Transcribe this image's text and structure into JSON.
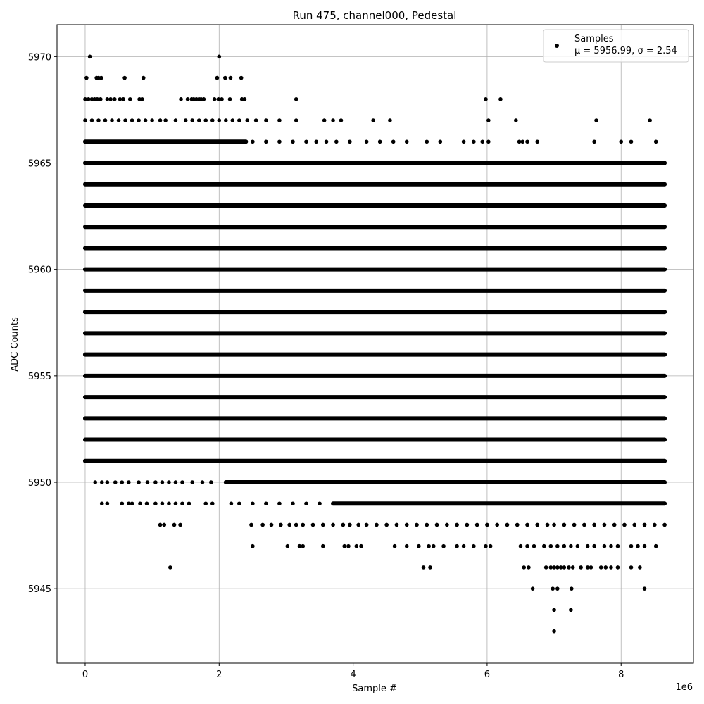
{
  "chart_data": {
    "type": "scatter",
    "title": "Run 475, channel000, Pedestal",
    "xlabel": "Sample #",
    "ylabel": "ADC Counts",
    "x_scale_label": "1e6",
    "xlim": [
      -0.42,
      9.08
    ],
    "ylim": [
      5941.5,
      5971.5
    ],
    "x_ticks": [
      0,
      2,
      4,
      6,
      8
    ],
    "y_ticks": [
      5945,
      5950,
      5955,
      5960,
      5965,
      5970
    ],
    "grid": true,
    "legend": {
      "placement": "top-right",
      "label": "Samples",
      "stats": "μ = 5956.99, σ = 2.54"
    },
    "marker_color": "#000000",
    "series": [
      {
        "name": "Samples",
        "dense_bands": [
          {
            "y": 5951,
            "x_range": [
              0.0,
              8.65
            ]
          },
          {
            "y": 5952,
            "x_range": [
              0.0,
              8.65
            ]
          },
          {
            "y": 5953,
            "x_range": [
              0.0,
              8.65
            ]
          },
          {
            "y": 5954,
            "x_range": [
              0.0,
              8.65
            ]
          },
          {
            "y": 5955,
            "x_range": [
              0.0,
              8.65
            ]
          },
          {
            "y": 5956,
            "x_range": [
              0.0,
              8.65
            ]
          },
          {
            "y": 5957,
            "x_range": [
              0.0,
              8.65
            ]
          },
          {
            "y": 5958,
            "x_range": [
              0.0,
              8.65
            ]
          },
          {
            "y": 5959,
            "x_range": [
              0.0,
              8.65
            ]
          },
          {
            "y": 5960,
            "x_range": [
              0.0,
              8.65
            ]
          },
          {
            "y": 5961,
            "x_range": [
              0.0,
              8.65
            ]
          },
          {
            "y": 5962,
            "x_range": [
              0.0,
              8.65
            ]
          },
          {
            "y": 5963,
            "x_range": [
              0.0,
              8.65
            ]
          },
          {
            "y": 5964,
            "x_range": [
              0.0,
              8.65
            ]
          },
          {
            "y": 5965,
            "x_range": [
              0.0,
              8.65
            ]
          },
          {
            "y": 5950,
            "x_range": [
              2.1,
              8.65
            ]
          },
          {
            "y": 5949,
            "x_range": [
              3.7,
              8.65
            ]
          },
          {
            "y": 5966,
            "x_range": [
              0.0,
              2.4
            ]
          }
        ],
        "points": [
          [
            0.07,
            5970
          ],
          [
            2.0,
            5970
          ],
          [
            0.02,
            5969
          ],
          [
            0.17,
            5969
          ],
          [
            0.2,
            5969
          ],
          [
            0.24,
            5969
          ],
          [
            0.59,
            5969
          ],
          [
            0.87,
            5969
          ],
          [
            1.97,
            5969
          ],
          [
            2.09,
            5969
          ],
          [
            2.17,
            5969
          ],
          [
            2.33,
            5969
          ],
          [
            0.0,
            5968
          ],
          [
            0.05,
            5968
          ],
          [
            0.1,
            5968
          ],
          [
            0.14,
            5968
          ],
          [
            0.18,
            5968
          ],
          [
            0.23,
            5968
          ],
          [
            0.33,
            5968
          ],
          [
            0.38,
            5968
          ],
          [
            0.44,
            5968
          ],
          [
            0.52,
            5968
          ],
          [
            0.57,
            5968
          ],
          [
            0.67,
            5968
          ],
          [
            0.81,
            5968
          ],
          [
            0.85,
            5968
          ],
          [
            1.43,
            5968
          ],
          [
            1.53,
            5968
          ],
          [
            1.59,
            5968
          ],
          [
            1.62,
            5968
          ],
          [
            1.66,
            5968
          ],
          [
            1.7,
            5968
          ],
          [
            1.73,
            5968
          ],
          [
            1.77,
            5968
          ],
          [
            1.93,
            5968
          ],
          [
            1.99,
            5968
          ],
          [
            2.04,
            5968
          ],
          [
            2.16,
            5968
          ],
          [
            2.34,
            5968
          ],
          [
            2.38,
            5968
          ],
          [
            3.15,
            5968
          ],
          [
            5.98,
            5968
          ],
          [
            6.2,
            5968
          ],
          [
            0.0,
            5967
          ],
          [
            0.1,
            5967
          ],
          [
            0.2,
            5967
          ],
          [
            0.3,
            5967
          ],
          [
            0.4,
            5967
          ],
          [
            0.5,
            5967
          ],
          [
            0.6,
            5967
          ],
          [
            0.7,
            5967
          ],
          [
            0.8,
            5967
          ],
          [
            0.9,
            5967
          ],
          [
            1.0,
            5967
          ],
          [
            1.12,
            5967
          ],
          [
            1.2,
            5967
          ],
          [
            1.35,
            5967
          ],
          [
            1.5,
            5967
          ],
          [
            1.6,
            5967
          ],
          [
            1.7,
            5967
          ],
          [
            1.8,
            5967
          ],
          [
            1.9,
            5967
          ],
          [
            2.0,
            5967
          ],
          [
            2.1,
            5967
          ],
          [
            2.2,
            5967
          ],
          [
            2.3,
            5967
          ],
          [
            2.42,
            5967
          ],
          [
            2.55,
            5967
          ],
          [
            2.7,
            5967
          ],
          [
            2.9,
            5967
          ],
          [
            3.15,
            5967
          ],
          [
            3.57,
            5967
          ],
          [
            3.7,
            5967
          ],
          [
            3.82,
            5967
          ],
          [
            4.3,
            5967
          ],
          [
            4.55,
            5967
          ],
          [
            6.02,
            5967
          ],
          [
            6.43,
            5967
          ],
          [
            7.63,
            5967
          ],
          [
            8.43,
            5967
          ],
          [
            2.5,
            5966
          ],
          [
            2.7,
            5966
          ],
          [
            2.9,
            5966
          ],
          [
            3.1,
            5966
          ],
          [
            3.3,
            5966
          ],
          [
            3.45,
            5966
          ],
          [
            3.6,
            5966
          ],
          [
            3.75,
            5966
          ],
          [
            3.95,
            5966
          ],
          [
            4.2,
            5966
          ],
          [
            4.4,
            5966
          ],
          [
            4.6,
            5966
          ],
          [
            4.8,
            5966
          ],
          [
            5.1,
            5966
          ],
          [
            5.3,
            5966
          ],
          [
            5.65,
            5966
          ],
          [
            5.8,
            5966
          ],
          [
            5.93,
            5966
          ],
          [
            6.02,
            5966
          ],
          [
            6.48,
            5966
          ],
          [
            6.53,
            5966
          ],
          [
            6.6,
            5966
          ],
          [
            6.75,
            5966
          ],
          [
            7.6,
            5966
          ],
          [
            8.0,
            5966
          ],
          [
            8.15,
            5966
          ],
          [
            8.52,
            5966
          ],
          [
            0.15,
            5950
          ],
          [
            0.25,
            5950
          ],
          [
            0.33,
            5950
          ],
          [
            0.45,
            5950
          ],
          [
            0.55,
            5950
          ],
          [
            0.65,
            5950
          ],
          [
            0.8,
            5950
          ],
          [
            0.93,
            5950
          ],
          [
            1.05,
            5950
          ],
          [
            1.15,
            5950
          ],
          [
            1.25,
            5950
          ],
          [
            1.35,
            5950
          ],
          [
            1.45,
            5950
          ],
          [
            1.6,
            5950
          ],
          [
            1.75,
            5950
          ],
          [
            1.88,
            5950
          ],
          [
            0.25,
            5949
          ],
          [
            0.33,
            5949
          ],
          [
            0.55,
            5949
          ],
          [
            0.65,
            5949
          ],
          [
            0.7,
            5949
          ],
          [
            0.82,
            5949
          ],
          [
            0.92,
            5949
          ],
          [
            1.05,
            5949
          ],
          [
            1.15,
            5949
          ],
          [
            1.25,
            5949
          ],
          [
            1.35,
            5949
          ],
          [
            1.45,
            5949
          ],
          [
            1.55,
            5949
          ],
          [
            1.8,
            5949
          ],
          [
            1.9,
            5949
          ],
          [
            2.18,
            5949
          ],
          [
            2.3,
            5949
          ],
          [
            2.5,
            5949
          ],
          [
            2.7,
            5949
          ],
          [
            2.9,
            5949
          ],
          [
            3.1,
            5949
          ],
          [
            3.3,
            5949
          ],
          [
            3.5,
            5949
          ],
          [
            1.12,
            5948
          ],
          [
            1.18,
            5948
          ],
          [
            1.33,
            5948
          ],
          [
            1.42,
            5948
          ],
          [
            2.48,
            5948
          ],
          [
            2.65,
            5948
          ],
          [
            2.78,
            5948
          ],
          [
            2.92,
            5948
          ],
          [
            3.05,
            5948
          ],
          [
            3.15,
            5948
          ],
          [
            3.25,
            5948
          ],
          [
            3.4,
            5948
          ],
          [
            3.55,
            5948
          ],
          [
            3.7,
            5948
          ],
          [
            3.85,
            5948
          ],
          [
            3.95,
            5948
          ],
          [
            4.08,
            5948
          ],
          [
            4.2,
            5948
          ],
          [
            4.35,
            5948
          ],
          [
            4.5,
            5948
          ],
          [
            4.65,
            5948
          ],
          [
            4.8,
            5948
          ],
          [
            4.95,
            5948
          ],
          [
            5.1,
            5948
          ],
          [
            5.25,
            5948
          ],
          [
            5.4,
            5948
          ],
          [
            5.55,
            5948
          ],
          [
            5.7,
            5948
          ],
          [
            5.85,
            5948
          ],
          [
            6.0,
            5948
          ],
          [
            6.15,
            5948
          ],
          [
            6.3,
            5948
          ],
          [
            6.45,
            5948
          ],
          [
            6.6,
            5948
          ],
          [
            6.75,
            5948
          ],
          [
            6.9,
            5948
          ],
          [
            7.0,
            5948
          ],
          [
            7.15,
            5948
          ],
          [
            7.3,
            5948
          ],
          [
            7.45,
            5948
          ],
          [
            7.6,
            5948
          ],
          [
            7.75,
            5948
          ],
          [
            7.9,
            5948
          ],
          [
            8.05,
            5948
          ],
          [
            8.2,
            5948
          ],
          [
            8.35,
            5948
          ],
          [
            8.5,
            5948
          ],
          [
            8.65,
            5948
          ],
          [
            2.5,
            5947
          ],
          [
            3.02,
            5947
          ],
          [
            3.2,
            5947
          ],
          [
            3.25,
            5947
          ],
          [
            3.55,
            5947
          ],
          [
            3.87,
            5947
          ],
          [
            3.93,
            5947
          ],
          [
            4.05,
            5947
          ],
          [
            4.12,
            5947
          ],
          [
            4.62,
            5947
          ],
          [
            4.8,
            5947
          ],
          [
            4.98,
            5947
          ],
          [
            5.13,
            5947
          ],
          [
            5.2,
            5947
          ],
          [
            5.35,
            5947
          ],
          [
            5.55,
            5947
          ],
          [
            5.65,
            5947
          ],
          [
            5.8,
            5947
          ],
          [
            5.98,
            5947
          ],
          [
            6.05,
            5947
          ],
          [
            6.5,
            5947
          ],
          [
            6.6,
            5947
          ],
          [
            6.7,
            5947
          ],
          [
            6.85,
            5947
          ],
          [
            6.95,
            5947
          ],
          [
            7.05,
            5947
          ],
          [
            7.15,
            5947
          ],
          [
            7.25,
            5947
          ],
          [
            7.35,
            5947
          ],
          [
            7.5,
            5947
          ],
          [
            7.6,
            5947
          ],
          [
            7.75,
            5947
          ],
          [
            7.85,
            5947
          ],
          [
            7.95,
            5947
          ],
          [
            8.15,
            5947
          ],
          [
            8.25,
            5947
          ],
          [
            8.35,
            5947
          ],
          [
            8.52,
            5947
          ],
          [
            1.27,
            5946
          ],
          [
            5.05,
            5946
          ],
          [
            5.15,
            5946
          ],
          [
            6.55,
            5946
          ],
          [
            6.62,
            5946
          ],
          [
            6.88,
            5946
          ],
          [
            6.95,
            5946
          ],
          [
            7.0,
            5946
          ],
          [
            7.05,
            5946
          ],
          [
            7.1,
            5946
          ],
          [
            7.15,
            5946
          ],
          [
            7.22,
            5946
          ],
          [
            7.28,
            5946
          ],
          [
            7.4,
            5946
          ],
          [
            7.5,
            5946
          ],
          [
            7.55,
            5946
          ],
          [
            7.7,
            5946
          ],
          [
            7.77,
            5946
          ],
          [
            7.85,
            5946
          ],
          [
            7.95,
            5946
          ],
          [
            8.15,
            5946
          ],
          [
            8.28,
            5946
          ],
          [
            6.68,
            5945
          ],
          [
            6.98,
            5945
          ],
          [
            7.05,
            5945
          ],
          [
            7.26,
            5945
          ],
          [
            8.35,
            5945
          ],
          [
            7.0,
            5944
          ],
          [
            7.25,
            5944
          ],
          [
            7.0,
            5943
          ]
        ]
      }
    ]
  }
}
